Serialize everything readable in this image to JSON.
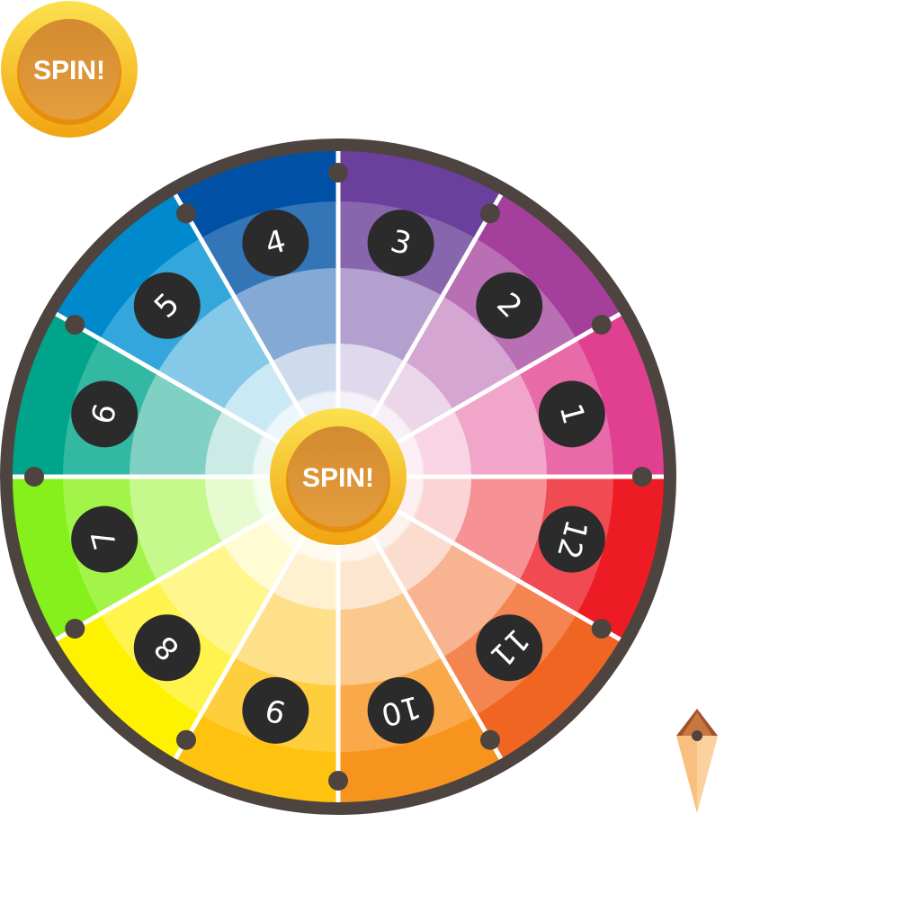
{
  "spin_button": {
    "label": "SPIN!"
  },
  "wheel": {
    "numbers": [
      "1",
      "2",
      "3",
      "4",
      "5",
      "6",
      "7",
      "8",
      "9",
      "10",
      "11",
      "12"
    ],
    "segments": [
      {
        "number": "1",
        "colors": [
          "#e0408f",
          "#e96aa8",
          "#f1a6c9",
          "#f8d4e5"
        ]
      },
      {
        "number": "2",
        "colors": [
          "#a4409c",
          "#b96fb4",
          "#d5a6d2",
          "#ecd6ea"
        ]
      },
      {
        "number": "3",
        "colors": [
          "#6b3f9c",
          "#8866ae",
          "#b3a0cf",
          "#e0d8ec"
        ]
      },
      {
        "number": "4",
        "colors": [
          "#0051a5",
          "#3376b8",
          "#84a9d4",
          "#cddbed"
        ]
      },
      {
        "number": "5",
        "colors": [
          "#0089cc",
          "#33a7db",
          "#85c8e8",
          "#cbe8f5"
        ]
      },
      {
        "number": "6",
        "colors": [
          "#00a48a",
          "#33b8a4",
          "#80d1c3",
          "#cdebe6"
        ]
      },
      {
        "number": "7",
        "colors": [
          "#85f01c",
          "#a2f548",
          "#c6f98b",
          "#e6fcd0"
        ]
      },
      {
        "number": "8",
        "colors": [
          "#fff200",
          "#fff34d",
          "#fff78e",
          "#fffbd2"
        ]
      },
      {
        "number": "9",
        "colors": [
          "#ffc20e",
          "#ffce3d",
          "#ffe08a",
          "#fff1cf"
        ]
      },
      {
        "number": "10",
        "colors": [
          "#f7941d",
          "#f9a94a",
          "#fbc98d",
          "#fde6cf"
        ]
      },
      {
        "number": "11",
        "colors": [
          "#f16522",
          "#f48450",
          "#f8b491",
          "#fbddd0"
        ]
      },
      {
        "number": "12",
        "colors": [
          "#ed1c24",
          "#f04b52",
          "#f69195",
          "#fbd4d5"
        ]
      }
    ],
    "rim_color": "#4d433f",
    "badge_color": "#2b2b2b"
  },
  "pointer": {
    "colors": [
      "#a0522d",
      "#f9bf7e"
    ]
  }
}
